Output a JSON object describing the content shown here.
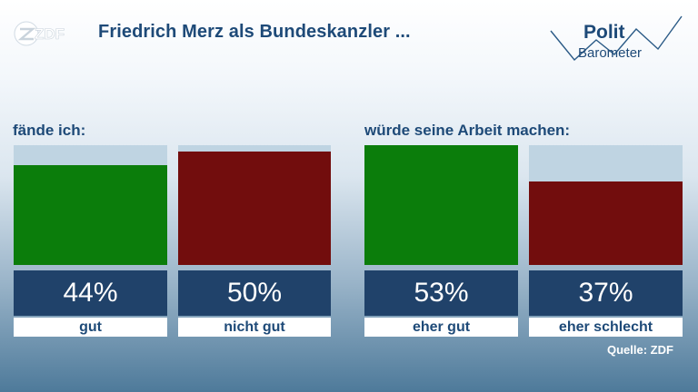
{
  "header": {
    "title": "Friedrich Merz als Bundeskanzler ...",
    "logo_text": "ZDF",
    "brand_line1": "Polit",
    "brand_line2": "Barometer"
  },
  "colors": {
    "positive": "#0b7d0b",
    "negative": "#720d0d",
    "bar_background": "#bfd4e2",
    "value_box": "#20426a",
    "title": "#1e4a78"
  },
  "chart_data": [
    {
      "type": "bar",
      "title": "fände ich:",
      "categories": [
        "gut",
        "nicht gut"
      ],
      "values": [
        44,
        50
      ],
      "value_labels": [
        "44%",
        "50%"
      ],
      "ylim": [
        0,
        53
      ],
      "colors": [
        "#0b7d0b",
        "#720d0d"
      ]
    },
    {
      "type": "bar",
      "title": "würde seine Arbeit machen:",
      "categories": [
        "eher gut",
        "eher schlecht"
      ],
      "values": [
        53,
        37
      ],
      "value_labels": [
        "53%",
        "37%"
      ],
      "ylim": [
        0,
        53
      ],
      "colors": [
        "#0b7d0b",
        "#720d0d"
      ]
    }
  ],
  "footer": {
    "source": "Quelle: ZDF"
  }
}
